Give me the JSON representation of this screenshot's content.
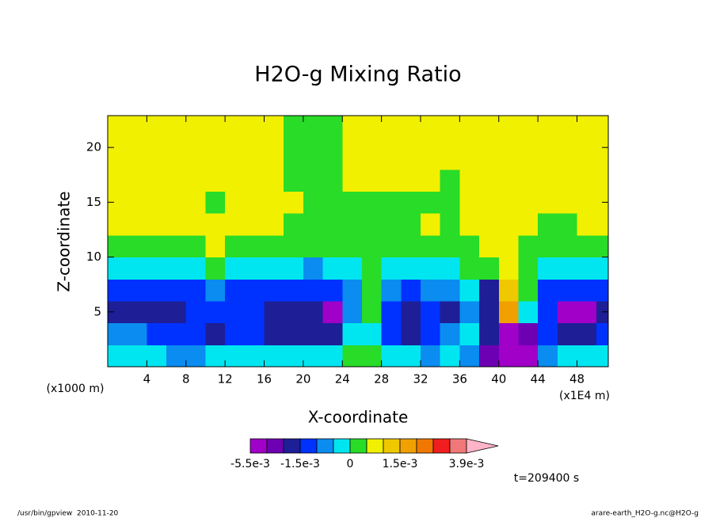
{
  "chart_data": {
    "type": "contour",
    "title": "H2O-g Mixing Ratio",
    "xlabel": "X-coordinate",
    "ylabel": "Z-coordinate",
    "x_unit_label": "(x1E4 m)",
    "y_unit_label": "(x1000 m)",
    "x": [
      0,
      2,
      4,
      6,
      8,
      10,
      12,
      14,
      16,
      18,
      20,
      22,
      24,
      26,
      28,
      30,
      32,
      34,
      36,
      38,
      40,
      42,
      44,
      46,
      48,
      50
    ],
    "z": [
      0,
      2,
      4,
      6,
      8,
      10,
      12,
      14,
      16,
      18,
      20,
      22
    ],
    "xlim": [
      0,
      51.2
    ],
    "ylim": [
      0,
      22.9
    ],
    "xticks": [
      4,
      8,
      12,
      16,
      20,
      24,
      28,
      32,
      36,
      40,
      44,
      48
    ],
    "yticks": [
      5,
      10,
      15,
      20
    ],
    "values": [
      [
        -0.0002,
        -0.0002,
        -0.0002,
        -0.0007,
        -0.0007,
        -0.0002,
        -0.0002,
        -0.0002,
        -0.0002,
        -0.0002,
        -0.0002,
        -0.0002,
        0.0002,
        0.0002,
        -0.0002,
        -0.0002,
        -0.0007,
        -0.0002,
        -0.0007,
        -0.0022,
        -0.003,
        -0.003,
        -0.0007,
        -0.0002,
        -0.0002,
        -0.0002
      ],
      [
        -0.0007,
        -0.0007,
        -0.0012,
        -0.0012,
        -0.0012,
        -0.0017,
        -0.0012,
        -0.0012,
        -0.0017,
        -0.0017,
        -0.0017,
        -0.0017,
        -0.0002,
        -0.0002,
        -0.0012,
        -0.0017,
        -0.0012,
        -0.0007,
        -0.0002,
        -0.0017,
        -0.003,
        -0.0022,
        -0.0012,
        -0.0017,
        -0.0017,
        -0.0012
      ],
      [
        -0.0017,
        -0.0017,
        -0.0017,
        -0.0017,
        -0.0012,
        -0.0012,
        -0.0012,
        -0.0012,
        -0.0017,
        -0.0017,
        -0.0017,
        -0.003,
        -0.0007,
        0.0002,
        -0.0012,
        -0.0017,
        -0.0012,
        -0.0017,
        -0.0007,
        -0.0017,
        0.0017,
        -0.0002,
        -0.0012,
        -0.003,
        -0.003,
        -0.0017
      ],
      [
        -0.0012,
        -0.0012,
        -0.0012,
        -0.0012,
        -0.0012,
        -0.0007,
        -0.0012,
        -0.0012,
        -0.0012,
        -0.0012,
        -0.0012,
        -0.0012,
        -0.0007,
        0.0002,
        -0.0007,
        -0.0012,
        -0.0007,
        -0.0007,
        -0.0002,
        -0.0017,
        0.0012,
        0.0002,
        -0.0012,
        -0.0012,
        -0.0012,
        -0.0012
      ],
      [
        -0.0002,
        -0.0002,
        -0.0002,
        -0.0002,
        -0.0002,
        0.0002,
        -0.0002,
        -0.0002,
        -0.0002,
        -0.0002,
        -0.0007,
        -0.0002,
        -0.0002,
        0.0002,
        -0.0002,
        -0.0002,
        -0.0002,
        -0.0002,
        0.0002,
        0.0002,
        0.0007,
        0.0002,
        -0.0002,
        -0.0002,
        -0.0002,
        -0.0002
      ],
      [
        0.0002,
        0.0002,
        0.0002,
        0.0002,
        0.0002,
        0.0007,
        0.0002,
        0.0002,
        0.0002,
        0.0002,
        0.0002,
        0.0002,
        0.0002,
        0.0002,
        0.0002,
        0.0002,
        0.0002,
        0.0002,
        0.0002,
        0.0007,
        0.0007,
        0.0002,
        0.0002,
        0.0002,
        0.0002,
        0.0002
      ],
      [
        0.0007,
        0.0007,
        0.0007,
        0.0007,
        0.0007,
        0.0007,
        0.0007,
        0.0007,
        0.0007,
        0.0002,
        0.0002,
        0.0002,
        0.0002,
        0.0002,
        0.0002,
        0.0002,
        0.0007,
        0.0002,
        0.0007,
        0.0007,
        0.0007,
        0.0007,
        0.0002,
        0.0002,
        0.0007,
        0.0007
      ],
      [
        0.0007,
        0.0007,
        0.0007,
        0.0007,
        0.0007,
        0.0002,
        0.0007,
        0.0007,
        0.0007,
        0.0007,
        0.0002,
        0.0002,
        0.0002,
        0.0002,
        0.0002,
        0.0002,
        0.0002,
        0.0002,
        0.0007,
        0.0007,
        0.0007,
        0.0007,
        0.0007,
        0.0007,
        0.0007,
        0.0007
      ],
      [
        0.0007,
        0.0007,
        0.0007,
        0.0007,
        0.0007,
        0.0007,
        0.0007,
        0.0007,
        0.0007,
        0.0002,
        0.0002,
        0.0002,
        0.0007,
        0.0007,
        0.0007,
        0.0007,
        0.0007,
        0.0002,
        0.0007,
        0.0007,
        0.0007,
        0.0007,
        0.0007,
        0.0007,
        0.0007,
        0.0007
      ],
      [
        0.0007,
        0.0007,
        0.0007,
        0.0007,
        0.0007,
        0.0007,
        0.0007,
        0.0007,
        0.0007,
        0.0002,
        0.0002,
        0.0002,
        0.0007,
        0.0007,
        0.0007,
        0.0007,
        0.0007,
        0.0007,
        0.0007,
        0.0007,
        0.0007,
        0.0007,
        0.0007,
        0.0007,
        0.0007,
        0.0007
      ],
      [
        0.0007,
        0.0007,
        0.0007,
        0.0007,
        0.0007,
        0.0007,
        0.0007,
        0.0007,
        0.0007,
        0.0002,
        0.0002,
        0.0002,
        0.0007,
        0.0007,
        0.0007,
        0.0007,
        0.0007,
        0.0007,
        0.0007,
        0.0007,
        0.0007,
        0.0007,
        0.0007,
        0.0007,
        0.0007,
        0.0007
      ],
      [
        0.0007,
        0.0007,
        0.0007,
        0.0007,
        0.0007,
        0.0007,
        0.0007,
        0.0007,
        0.0007,
        0.0002,
        0.0002,
        0.0002,
        0.0007,
        0.0007,
        0.0007,
        0.0007,
        0.0007,
        0.0007,
        0.0007,
        0.0007,
        0.0007,
        0.0007,
        0.0007,
        0.0007,
        0.0007,
        0.0007
      ]
    ],
    "colorbar": {
      "levels": [
        -0.0055,
        -0.0025,
        -0.002,
        -0.0015,
        -0.001,
        -0.0005,
        0,
        0.0005,
        0.001,
        0.0015,
        0.002,
        0.0025,
        0.003,
        0.0039
      ],
      "colors": [
        "#a000c8",
        "#6e00b4",
        "#1e1e96",
        "#0032ff",
        "#0a8cf0",
        "#00e6f0",
        "#28dc28",
        "#f0f000",
        "#f0c800",
        "#f0a000",
        "#f07800",
        "#f01e1e",
        "#f07878",
        "#ffb4c8"
      ],
      "ticks": [
        {
          "value": -0.0055,
          "label": "-5.5e-3"
        },
        {
          "value": -0.0015,
          "label": "-1.5e-3"
        },
        0,
        {
          "value": 0.0015,
          "label": "1.5e-3"
        },
        {
          "value": 0.0039,
          "label": "3.9e-3"
        }
      ]
    },
    "time_label": "t=209400 s",
    "footer_left": "/usr/bin/gpview  2010-11-20",
    "footer_right": "arare-earth_H2O-g.nc@H2O-g"
  }
}
